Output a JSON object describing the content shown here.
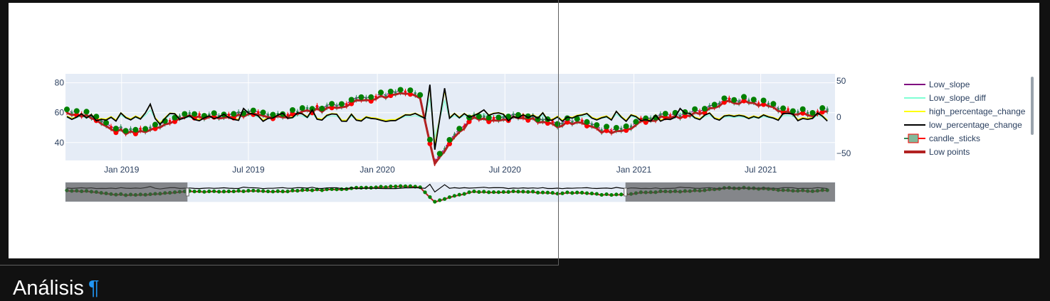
{
  "heading": {
    "title": "Análisis",
    "anchor": "¶"
  },
  "colors": {
    "plot_bg": "#e5ecf6",
    "Low_slope": "#800080",
    "Low_slope_diff": "#7fffd4",
    "high_percentage_change": "#ffff00",
    "low_percentage_change": "#000000",
    "candle_increasing": "#2e8b57",
    "candle_decreasing": "#ff0000",
    "Low_points": "#b22222",
    "markers": "#008000"
  },
  "chart_data": {
    "type": "line",
    "x_range": [
      "2018-10-13",
      "2021-10-15"
    ],
    "x_ticks": [
      "Jan 2019",
      "Jul 2019",
      "Jan 2020",
      "Jul 2020",
      "Jan 2021",
      "Jul 2021"
    ],
    "x_tick_dates": [
      "2019-01-01",
      "2019-07-01",
      "2020-01-01",
      "2020-07-01",
      "2021-01-01",
      "2021-07-01"
    ],
    "y_left": {
      "range": [
        28,
        86
      ],
      "ticks": [
        "40",
        "60",
        "80"
      ],
      "tick_values": [
        40,
        60,
        80
      ]
    },
    "y_right": {
      "range": [
        -60,
        60
      ],
      "ticks": [
        "50",
        "0",
        "−50"
      ],
      "tick_values": [
        50,
        0,
        -50
      ]
    },
    "price_series": [
      [
        "2018-10-15",
        61
      ],
      [
        "2018-11-15",
        59
      ],
      [
        "2018-12-15",
        50
      ],
      [
        "2019-01-15",
        47
      ],
      [
        "2019-02-15",
        50
      ],
      [
        "2019-03-15",
        56
      ],
      [
        "2019-04-15",
        59
      ],
      [
        "2019-05-15",
        57
      ],
      [
        "2019-06-15",
        59
      ],
      [
        "2019-07-15",
        59
      ],
      [
        "2019-08-15",
        58
      ],
      [
        "2019-09-15",
        62
      ],
      [
        "2019-10-15",
        63
      ],
      [
        "2019-11-15",
        66
      ],
      [
        "2019-12-15",
        70
      ],
      [
        "2020-01-15",
        72
      ],
      [
        "2020-02-10",
        75
      ],
      [
        "2020-03-01",
        72
      ],
      [
        "2020-03-23",
        28
      ],
      [
        "2020-04-15",
        42
      ],
      [
        "2020-05-15",
        57
      ],
      [
        "2020-06-15",
        55
      ],
      [
        "2020-07-15",
        57
      ],
      [
        "2020-08-15",
        56
      ],
      [
        "2020-09-15",
        52
      ],
      [
        "2020-10-15",
        56
      ],
      [
        "2020-11-15",
        48
      ],
      [
        "2020-12-15",
        49
      ],
      [
        "2021-01-15",
        55
      ],
      [
        "2021-02-15",
        58
      ],
      [
        "2021-03-15",
        58
      ],
      [
        "2021-04-15",
        63
      ],
      [
        "2021-05-15",
        68
      ],
      [
        "2021-06-15",
        68
      ],
      [
        "2021-07-15",
        65
      ],
      [
        "2021-08-15",
        60
      ],
      [
        "2021-09-15",
        60
      ],
      [
        "2021-10-10",
        62
      ]
    ],
    "series": [
      {
        "name": "Low_slope",
        "style": "line"
      },
      {
        "name": "Low_slope_diff",
        "style": "line"
      },
      {
        "name": "high_percentage_change",
        "style": "line"
      },
      {
        "name": "low_percentage_change",
        "style": "line"
      },
      {
        "name": "candle_sticks",
        "style": "candlestick"
      },
      {
        "name": "Low points",
        "style": "line"
      }
    ],
    "percentage_change_spikes": [
      [
        "2019-02-12",
        18
      ],
      [
        "2019-02-26",
        -10
      ],
      [
        "2019-06-25",
        12
      ],
      [
        "2019-10-01",
        10
      ],
      [
        "2020-03-16",
        45
      ],
      [
        "2020-03-23",
        -45
      ],
      [
        "2020-04-06",
        40
      ],
      [
        "2020-06-01",
        10
      ],
      [
        "2020-12-10",
        8
      ],
      [
        "2021-03-05",
        12
      ]
    ],
    "legend_position": "right",
    "grid": true,
    "rangeslider": {
      "visible": true,
      "selected_range": [
        "2019-04-05",
        "2020-12-20"
      ]
    }
  }
}
